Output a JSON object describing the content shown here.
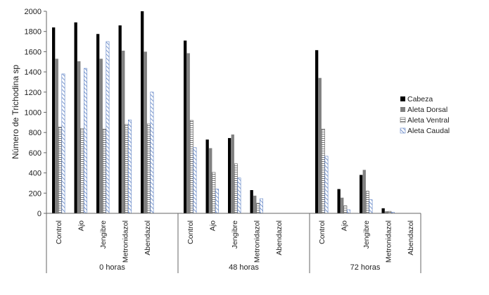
{
  "chart_data": {
    "type": "bar",
    "ylabel": "Número de Trichodina sp",
    "ylim": [
      0,
      2000
    ],
    "yticks": [
      0,
      200,
      400,
      600,
      800,
      1000,
      1200,
      1400,
      1600,
      1800,
      2000
    ],
    "grid": false,
    "legend_position": "right",
    "groups": [
      {
        "label": "0 horas",
        "categories": [
          "Control",
          "Ajo",
          "Jengibre",
          "Metronidazol",
          "Abendazol"
        ]
      },
      {
        "label": "48 horas",
        "categories": [
          "Control",
          "Ajo",
          "Jengibre",
          "Metronidazol",
          "Abendazol"
        ]
      },
      {
        "label": "72 horas",
        "categories": [
          "Control",
          "Ajo",
          "Jengibre",
          "Metronidazol",
          "Abendazol"
        ]
      }
    ],
    "series": [
      {
        "name": "Cabeza",
        "color": "#000000",
        "pattern": "solid",
        "values": [
          1840,
          1890,
          1775,
          1860,
          2000,
          1710,
          730,
          745,
          230,
          0,
          1615,
          240,
          380,
          50,
          0
        ]
      },
      {
        "name": "Aleta Dorsal",
        "color": "#808080",
        "pattern": "solid",
        "values": [
          1530,
          1505,
          1530,
          1610,
          1600,
          1585,
          645,
          780,
          175,
          0,
          1340,
          155,
          430,
          20,
          0
        ]
      },
      {
        "name": "Aleta Ventral",
        "color": "#555555",
        "pattern": "horizontal-lines",
        "values": [
          855,
          840,
          835,
          880,
          885,
          920,
          405,
          490,
          100,
          0,
          835,
          75,
          220,
          20,
          0
        ]
      },
      {
        "name": "Aleta Caudal",
        "color": "#5b7fc4",
        "pattern": "diagonal-lines",
        "values": [
          1380,
          1435,
          1700,
          925,
          1200,
          650,
          240,
          350,
          145,
          0,
          565,
          35,
          135,
          10,
          0
        ]
      }
    ]
  }
}
